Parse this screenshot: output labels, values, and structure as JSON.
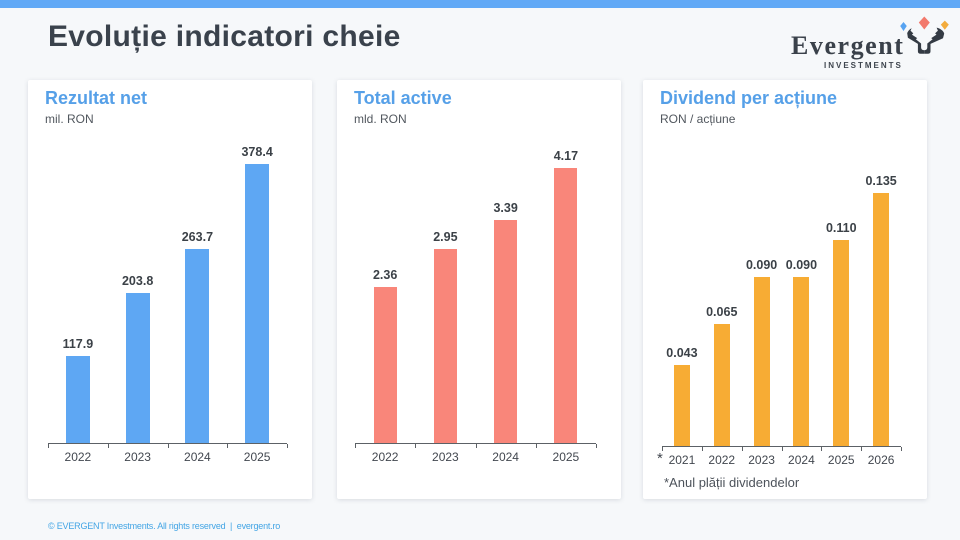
{
  "page": {
    "title": "Evoluție indicatori cheie"
  },
  "logo": {
    "brand": "Evergent",
    "subtitle": "INVESTMENTS",
    "icon": "bull-head-with-diamonds",
    "diamond_colors": {
      "left": "#57a3f1",
      "middle": "#f37f70",
      "right": "#f3ac3c"
    },
    "mark_color": "#343b44"
  },
  "footer": {
    "text": "© EVERGENT Investments. All rights reserved  |  evergent.ro"
  },
  "colors": {
    "top_bar": "#61a9f6",
    "background": "#f6f8fa",
    "card": "#ffffff",
    "card_title": "#56a0e8",
    "bar_blue": "#5ea7f3",
    "bar_salmon": "#f9867a",
    "bar_orange": "#f7ac34"
  },
  "chart_data": [
    {
      "type": "bar",
      "title": "Rezultat net",
      "subtitle": "mil. RON",
      "categories": [
        "2022",
        "2023",
        "2024",
        "2025"
      ],
      "values": [
        117.9,
        203.8,
        263.7,
        378.4
      ],
      "value_labels": [
        "117.9",
        "203.8",
        "263.7",
        "378.4"
      ],
      "bar_color": "#5ea7f3",
      "ylim": [
        0,
        400
      ],
      "grid": false,
      "legend": false
    },
    {
      "type": "bar",
      "title": "Total active",
      "subtitle": "mld. RON",
      "categories": [
        "2022",
        "2023",
        "2024",
        "2025"
      ],
      "values": [
        2.36,
        2.95,
        3.39,
        4.17
      ],
      "value_labels": [
        "2.36",
        "2.95",
        "3.39",
        "4.17"
      ],
      "bar_color": "#f9867a",
      "ylim": [
        0,
        4.4
      ],
      "grid": false,
      "legend": false
    },
    {
      "type": "bar",
      "title": "Dividend per acțiune",
      "subtitle": "RON / acțiune",
      "categories": [
        "2021",
        "2022",
        "2023",
        "2024",
        "2025",
        "2026"
      ],
      "values": [
        0.043,
        0.065,
        0.09,
        0.09,
        0.11,
        0.135
      ],
      "value_labels": [
        "0.043",
        "0.065",
        "0.090",
        "0.090",
        "0.110",
        "0.135"
      ],
      "bar_color": "#f7ac34",
      "ylim": [
        0,
        0.15
      ],
      "grid": false,
      "legend": false,
      "axis_note": "*",
      "footnote": "*Anul plății dividendelor"
    }
  ]
}
